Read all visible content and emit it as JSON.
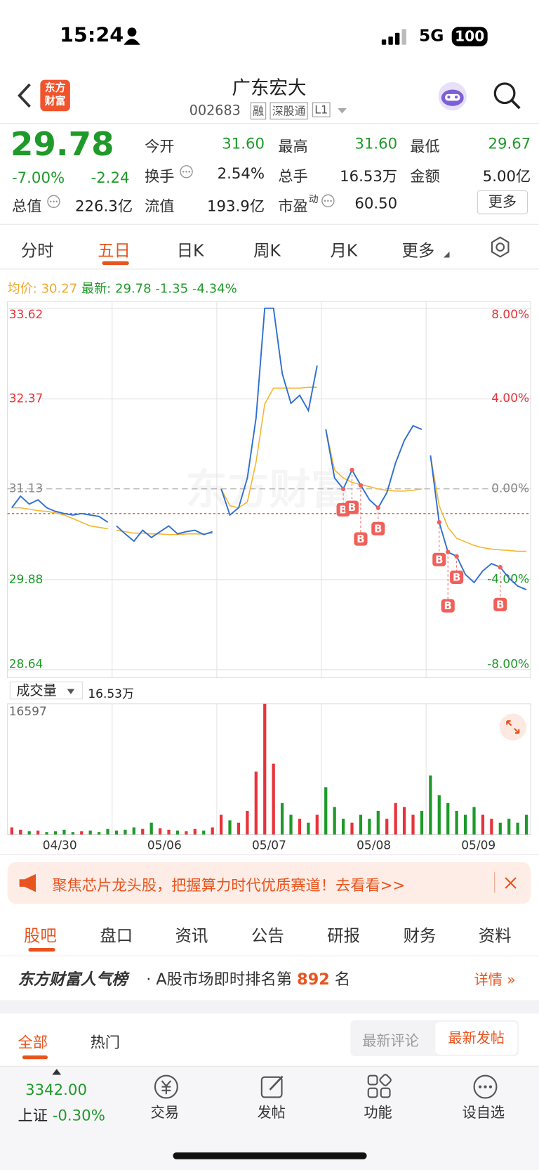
{
  "status": {
    "time": "15:24",
    "network": "5G",
    "battery": "100"
  },
  "header": {
    "logo": [
      "东方",
      "财富"
    ],
    "title": "广东宏大",
    "code": "002683",
    "tags": [
      "融",
      "深股通",
      "L1"
    ]
  },
  "quote": {
    "price": "29.78",
    "pct": "-7.00%",
    "change": "-2.24",
    "stats": [
      {
        "label": "今开",
        "value": "31.60"
      },
      {
        "label": "最高",
        "value": "31.60"
      },
      {
        "label": "最低",
        "value": "29.67"
      },
      {
        "label": "换手",
        "value": "2.54%"
      },
      {
        "label": "总手",
        "value": "16.53万"
      },
      {
        "label": "金额",
        "value": "5.00亿"
      },
      {
        "label": "总值",
        "value": "226.3亿"
      },
      {
        "label": "流值",
        "value": "193.9亿"
      },
      {
        "label": "市盈",
        "tag": "动",
        "value": "60.50"
      }
    ],
    "more": "更多"
  },
  "chart_tabs": {
    "items": [
      "分时",
      "五日",
      "日K",
      "周K",
      "月K",
      "更多"
    ],
    "active": 1
  },
  "chart_data": {
    "type": "line",
    "watermark": "东方财富",
    "legend": {
      "avg_label": "均价:",
      "avg": "30.27",
      "latest_label": "最新:",
      "latest": "29.78",
      "change": "-1.35",
      "pct": "-4.34%"
    },
    "days": [
      "04/30",
      "05/06",
      "05/07",
      "05/08",
      "05/09"
    ],
    "ylim": [
      28.64,
      33.62
    ],
    "yticks": [
      33.62,
      32.37,
      31.13,
      29.88,
      28.64
    ],
    "y2lim": [
      -8,
      8
    ],
    "y2ticks": [
      {
        "value": 8,
        "label": "8.00%"
      },
      {
        "value": 4,
        "label": "4.00%"
      },
      {
        "value": 0,
        "label": "0.00%"
      },
      {
        "value": -4,
        "label": "-4.00%"
      },
      {
        "value": -8,
        "label": "-8.00%"
      }
    ],
    "cost_line": 30.79,
    "series": [
      {
        "name": "价格",
        "color": "#2f6fd1",
        "values": [
          30.87,
          31.03,
          30.92,
          30.98,
          30.87,
          30.82,
          30.79,
          30.77,
          30.79,
          30.77,
          30.75,
          30.67,
          30.62,
          30.51,
          30.41,
          30.56,
          30.46,
          30.54,
          30.62,
          30.51,
          30.54,
          30.56,
          30.5,
          30.54,
          31.13,
          30.77,
          30.87,
          31.28,
          32.11,
          33.62,
          33.62,
          32.72,
          32.31,
          32.42,
          32.21,
          32.83,
          31.95,
          31.28,
          31.13,
          31.39,
          31.18,
          30.98,
          30.87,
          31.08,
          31.49,
          31.8,
          32.0,
          31.95,
          31.59,
          30.67,
          30.26,
          30.2,
          29.95,
          29.84,
          30.0,
          30.1,
          30.05,
          29.9,
          29.79,
          29.74
        ]
      },
      {
        "name": "均价",
        "color": "#f5b630",
        "values": [
          30.87,
          30.87,
          30.85,
          30.83,
          30.82,
          30.8,
          30.77,
          30.72,
          30.67,
          30.62,
          30.6,
          30.58,
          30.56,
          30.54,
          30.52,
          30.52,
          30.51,
          30.51,
          30.5,
          30.5,
          30.51,
          30.51,
          30.51,
          30.52,
          31.13,
          30.9,
          30.87,
          30.95,
          31.5,
          32.3,
          32.52,
          32.52,
          32.52,
          32.52,
          32.53,
          32.53,
          31.95,
          31.39,
          31.28,
          31.22,
          31.19,
          31.16,
          31.13,
          31.11,
          31.1,
          31.1,
          31.11,
          31.13,
          31.59,
          30.9,
          30.6,
          30.45,
          30.4,
          30.35,
          30.32,
          30.3,
          30.29,
          30.28,
          30.27,
          30.27
        ]
      }
    ],
    "signals": [
      {
        "label": "B",
        "point": 38
      },
      {
        "label": "B",
        "point": 39
      },
      {
        "label": "B",
        "point": 40
      },
      {
        "label": "B",
        "point": 42
      },
      {
        "label": "B",
        "point": 49
      },
      {
        "label": "B",
        "point": 50
      },
      {
        "label": "B",
        "point": 51
      },
      {
        "label": "B",
        "point": 56
      }
    ],
    "volume": {
      "label": "成交量",
      "total": "16.53万",
      "ylim": [
        0,
        16597
      ],
      "yticks": [
        16597
      ],
      "values": [
        900,
        600,
        400,
        500,
        300,
        400,
        600,
        300,
        400,
        500,
        300,
        700,
        500,
        600,
        900,
        700,
        1500,
        800,
        600,
        500,
        400,
        700,
        500,
        900,
        2500,
        1800,
        1500,
        3000,
        8000,
        16597,
        9000,
        4000,
        2500,
        2000,
        1500,
        2500,
        6000,
        3500,
        2000,
        1500,
        2500,
        2000,
        3000,
        2000,
        4000,
        3500,
        2500,
        3000,
        7500,
        5000,
        4000,
        3000,
        2500,
        3500,
        2500,
        2000,
        1500,
        2000,
        1500,
        2500
      ]
    }
  },
  "banner": {
    "text": "聚焦芯片龙头股，把握算力时代优质赛道！去看看>>"
  },
  "section_tabs": {
    "items": [
      "股吧",
      "盘口",
      "资讯",
      "公告",
      "研报",
      "财务",
      "资料"
    ],
    "active": 0
  },
  "ranking": {
    "brand": "东方财富人气榜",
    "text": "· A股市场即时排名第",
    "rank": "892",
    "unit": "名",
    "detail": "详情"
  },
  "feed_tabs": {
    "items": [
      "全部",
      "热门"
    ],
    "sort": [
      "最新评论",
      "最新发帖"
    ]
  },
  "bottom_nav": {
    "index_value": "3342.00",
    "index_name": "上证",
    "index_pct": "-0.30%",
    "items": [
      "交易",
      "发帖",
      "功能",
      "设自选"
    ]
  }
}
